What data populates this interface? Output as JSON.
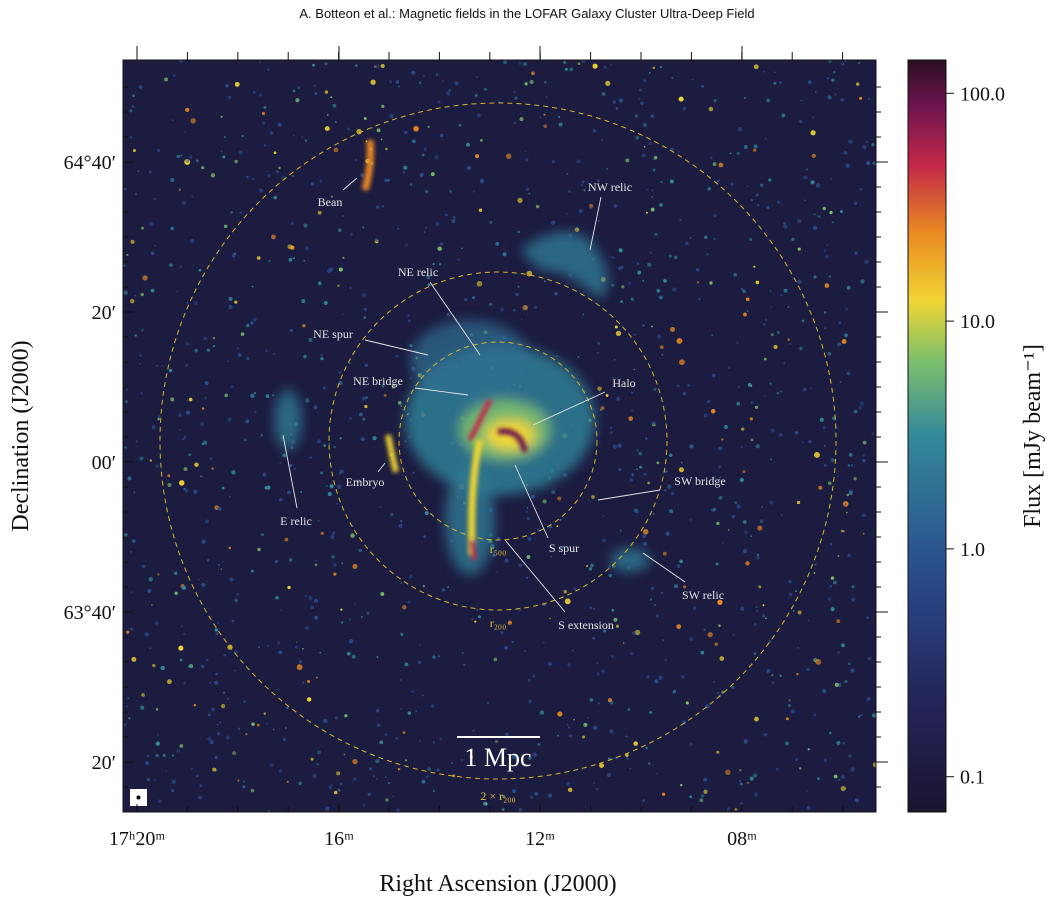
{
  "header": {
    "title": "A. Botteon et al.: Magnetic fields in the LOFAR Galaxy Cluster Ultra-Deep Field"
  },
  "figure": {
    "x_axis": {
      "label": "Right Ascension (J2000)",
      "ticks": [
        "17ʰ20ᵐ",
        "16ᵐ",
        "12ᵐ",
        "08ᵐ"
      ]
    },
    "y_axis": {
      "label": "Declination (J2000)",
      "ticks": [
        "64°40′",
        "20′",
        "00′",
        "63°40′",
        "20′"
      ]
    },
    "colorbar": {
      "label": "Flux [mJy beam⁻¹]",
      "scale": "log",
      "lim": [
        0.07,
        140
      ],
      "ticks": [
        {
          "value": 0.1,
          "label": "0.1"
        },
        {
          "value": 1,
          "label": "1.0"
        },
        {
          "value": 10,
          "label": "10.0"
        },
        {
          "value": 100,
          "label": "100.0"
        }
      ]
    },
    "annotations": [
      "Bean",
      "NW relic",
      "NE relic",
      "NE spur",
      "NE bridge",
      "Halo",
      "Embryo",
      "E relic",
      "SW bridge",
      "S spur",
      "S extension",
      "SW relic"
    ],
    "circles": [
      "r₅₀₀",
      "r₂₀₀",
      "2 × r₂₀₀"
    ],
    "scale_bar": "1 Mpc"
  }
}
